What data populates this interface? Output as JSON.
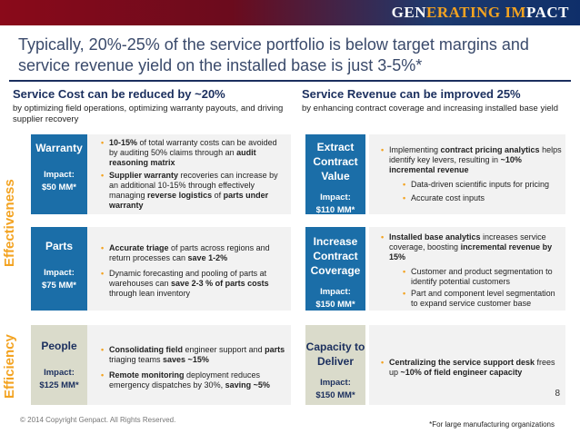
{
  "brand": {
    "part1": "GEN",
    "part2": "ERATING IM",
    "part3": "PACT"
  },
  "title": "Typically, 20%-25% of the service portfolio is below target margins  and service revenue yield on the installed base is just 3-5%*",
  "left_header": {
    "heading": "Service Cost can be reduced by ~20%",
    "sub": "by optimizing field operations, optimizing warranty payouts, and driving supplier recovery"
  },
  "right_header": {
    "heading": "Service Revenue can be improved 25%",
    "sub": "by enhancing contract coverage and increasing installed base yield"
  },
  "side_labels": {
    "effectiveness": "Effectiveness",
    "efficiency": "Efficiency"
  },
  "warranty": {
    "name": "Warranty",
    "impact_label": "Impact:",
    "impact_value": "$50 MM*",
    "b1": {
      "t1": "10-15%",
      "t2": " of total warranty costs can be avoided by auditing 50% claims through an ",
      "t3": "audit reasoning matrix"
    },
    "b2": {
      "t1": "Supplier warranty",
      "t2": " recoveries can increase by an additional 10-15% through effectively managing ",
      "t3": "reverse logistics",
      "t4": " of ",
      "t5": "parts under warranty"
    }
  },
  "parts": {
    "name": "Parts",
    "impact_label": "Impact:",
    "impact_value": "$75 MM*",
    "b1": {
      "t1": "Accurate triage",
      "t2": " of parts across regions and return processes can ",
      "t3": "save 1-2%"
    },
    "b2": {
      "t1": "Dynamic forecasting and pooling of parts at warehouses  can ",
      "t2": "save 2-3 % of parts costs",
      "t3": " through lean inventory"
    }
  },
  "people": {
    "name": "People",
    "impact_label": "Impact:",
    "impact_value": "$125 MM*",
    "b1": {
      "t1": "Consolidating ",
      "t2": "field",
      "t3": " engineer support and ",
      "t4": "parts",
      "t5": " triaging teams ",
      "t6": "saves ~15%"
    },
    "b2": {
      "t1": "Remote monitoring",
      "t2": " deployment reduces emergency dispatches by 30%, ",
      "t3": "saving ~5%"
    }
  },
  "extract": {
    "name1": "Extract",
    "name2": "Contract",
    "name3": "Value",
    "impact_label": "Impact:",
    "impact_value": "$110 MM*",
    "b1": {
      "t1": "Implementing ",
      "t2": "contract pricing analytics",
      "t3": " helps identify key levers, resulting in ",
      "t4": "~10% incremental revenue"
    },
    "s1": "Data-driven scientific inputs for pricing",
    "s2": "Accurate cost inputs"
  },
  "increase": {
    "name1": "Increase",
    "name2": "Contract",
    "name3": "Coverage",
    "impact_label": "Impact:",
    "impact_value": "$150 MM*",
    "b1": {
      "t1": "Installed base analytics",
      "t2": " increases service coverage, boosting ",
      "t3": "incremental revenue by 15%"
    },
    "s1": "Customer and product segmentation to identify potential customers",
    "s2": "Part and component level segmentation to expand service customer base"
  },
  "capacity": {
    "name1": "Capacity to",
    "name2": "Deliver",
    "impact_label": "Impact:",
    "impact_value": "$150 MM*",
    "b1": {
      "t1": "Centralizing the service support desk",
      "t2": " frees up ",
      "t3": "~10% of field engineer capacity"
    }
  },
  "footer": {
    "copyright": "© 2014 Copyright Genpact. All Rights Reserved.",
    "note": "*For large manufacturing organizations",
    "page": "8"
  }
}
